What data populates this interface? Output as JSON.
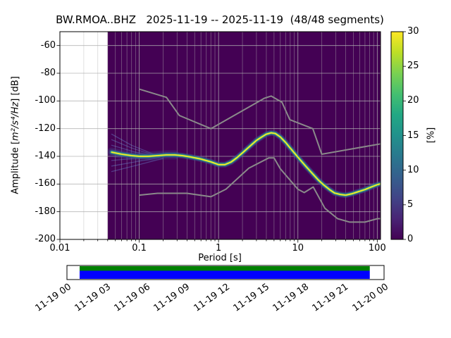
{
  "figure": {
    "title": "BW.RMOA..BHZ   2025-11-19 -- 2025-11-19  (48/48 segments)"
  },
  "axes": {
    "xlabel": "Period [s]",
    "ylabel_prefix": "Amplitude [",
    "ylabel_math": "m²/s⁴/Hz",
    "ylabel_suffix": "] [dB]",
    "x_tick_values": [
      0.01,
      0.1,
      1,
      10,
      100
    ],
    "x_tick_labels": [
      "0.01",
      "0.1",
      "1",
      "10",
      "100"
    ],
    "y_tick_values": [
      -60,
      -80,
      -100,
      -120,
      -140,
      -160,
      -180,
      -200
    ],
    "grid_color": "#b0b0b0"
  },
  "colorbar": {
    "label": "[%]",
    "tick_values": [
      0,
      5,
      10,
      15,
      20,
      25,
      30
    ],
    "stops": [
      "#440154",
      "#482475",
      "#414487",
      "#355f8d",
      "#2a788e",
      "#21918c",
      "#22a884",
      "#44bf70",
      "#7ad151",
      "#bddf26",
      "#fde725"
    ]
  },
  "timeline": {
    "tick_labels": [
      "11-19 00",
      "11-19 03",
      "11-19 06",
      "11-19 09",
      "11-19 12",
      "11-19 15",
      "11-19 18",
      "11-19 21",
      "11-20 00"
    ],
    "top_color": "#008000",
    "bottom_color": "#0000ff",
    "coverage_start_frac": 0.04,
    "coverage_end_frac": 0.955
  },
  "chart_data": {
    "type": "heatmap",
    "title": "BW.RMOA..BHZ   2025-11-19 -- 2025-11-19  (48/48 segments)",
    "xlabel": "Period [s]",
    "ylabel": "Amplitude [m^2/s^4/Hz] [dB]",
    "x_scale": "log",
    "xlim": [
      0.01,
      110
    ],
    "ylim": [
      -200,
      -50
    ],
    "colorbar_label": "[%]",
    "colorbar_range": [
      0,
      30
    ],
    "colormap": "viridis",
    "background_color": "#440154",
    "noise_model_color": "#8a8a8a",
    "spread_color": "rgba(110,150,220,0.38)",
    "data_extent": [
      0.04,
      110
    ],
    "band_styles": [
      {
        "color": "rgba(65,68,135,0.35)",
        "width": 13,
        "max_period": 0.3
      },
      {
        "color": "rgba(59,82,139,0.5)",
        "width": 8
      },
      {
        "color": "rgba(42,120,142,0.9)",
        "width": 5
      },
      {
        "color": "rgba(53,183,121,0.95)",
        "width": 3
      },
      {
        "color": "#fde725",
        "width": 1.8
      }
    ],
    "spread_strands": [
      [
        [
          0.045,
          -124
        ],
        [
          0.08,
          -132
        ],
        [
          0.16,
          -139
        ]
      ],
      [
        [
          0.045,
          -128
        ],
        [
          0.08,
          -134
        ],
        [
          0.16,
          -139.5
        ]
      ],
      [
        [
          0.045,
          -132
        ],
        [
          0.09,
          -137
        ],
        [
          0.16,
          -140
        ]
      ],
      [
        [
          0.045,
          -136
        ],
        [
          0.09,
          -139
        ],
        [
          0.16,
          -140
        ]
      ],
      [
        [
          0.045,
          -143
        ],
        [
          0.09,
          -141.5
        ],
        [
          0.16,
          -140.5
        ]
      ],
      [
        [
          0.045,
          -147
        ],
        [
          0.1,
          -143.5
        ],
        [
          0.18,
          -141
        ]
      ],
      [
        [
          0.045,
          -151
        ],
        [
          0.1,
          -146
        ],
        [
          0.2,
          -141.5
        ]
      ]
    ],
    "series": [
      {
        "name": "psd-mode",
        "points": [
          [
            0.045,
            -137
          ],
          [
            0.06,
            -138.5
          ],
          [
            0.08,
            -139.5
          ],
          [
            0.1,
            -140
          ],
          [
            0.13,
            -140
          ],
          [
            0.17,
            -139.5
          ],
          [
            0.22,
            -139
          ],
          [
            0.28,
            -139
          ],
          [
            0.35,
            -139.5
          ],
          [
            0.45,
            -140.5
          ],
          [
            0.6,
            -142
          ],
          [
            0.8,
            -144
          ],
          [
            1.0,
            -146
          ],
          [
            1.2,
            -146
          ],
          [
            1.45,
            -144
          ],
          [
            1.7,
            -141
          ],
          [
            2.0,
            -137.5
          ],
          [
            2.5,
            -132.5
          ],
          [
            3.0,
            -128.5
          ],
          [
            3.5,
            -126
          ],
          [
            4.0,
            -124
          ],
          [
            4.6,
            -123
          ],
          [
            5.2,
            -123.5
          ],
          [
            6.0,
            -126
          ],
          [
            7.0,
            -130
          ],
          [
            8.0,
            -134
          ],
          [
            9.0,
            -137.5
          ],
          [
            10.5,
            -142
          ],
          [
            12.5,
            -147
          ],
          [
            15.0,
            -152
          ],
          [
            18.0,
            -157
          ],
          [
            21.0,
            -160.5
          ],
          [
            25.0,
            -164
          ],
          [
            29.0,
            -166.5
          ],
          [
            34.0,
            -167.5
          ],
          [
            40.0,
            -168
          ],
          [
            48.0,
            -167
          ],
          [
            58.0,
            -165.5
          ],
          [
            70.0,
            -164
          ],
          [
            85.0,
            -162
          ],
          [
            100.0,
            -160.5
          ],
          [
            108.0,
            -160
          ]
        ]
      },
      {
        "name": "noise-model-high",
        "points": [
          [
            0.1,
            -91.5
          ],
          [
            0.22,
            -97.4
          ],
          [
            0.32,
            -110.5
          ],
          [
            0.8,
            -120.0
          ],
          [
            3.8,
            -98.0
          ],
          [
            4.6,
            -96.5
          ],
          [
            6.3,
            -101.0
          ],
          [
            7.9,
            -113.5
          ],
          [
            15.4,
            -120.0
          ],
          [
            20.0,
            -138.5
          ],
          [
            110.0,
            -131.0
          ]
        ]
      },
      {
        "name": "noise-model-low",
        "points": [
          [
            0.1,
            -168.0
          ],
          [
            0.17,
            -166.7
          ],
          [
            0.4,
            -166.7
          ],
          [
            0.8,
            -169.2
          ],
          [
            1.24,
            -163.7
          ],
          [
            2.4,
            -148.6
          ],
          [
            4.3,
            -141.1
          ],
          [
            5.0,
            -141.1
          ],
          [
            6.0,
            -149.0
          ],
          [
            10.0,
            -163.8
          ],
          [
            12.0,
            -166.2
          ],
          [
            15.6,
            -162.1
          ],
          [
            21.9,
            -177.5
          ],
          [
            31.6,
            -185.0
          ],
          [
            45.0,
            -187.5
          ],
          [
            70.0,
            -187.5
          ],
          [
            101.0,
            -185.0
          ],
          [
            110.0,
            -185.0
          ]
        ]
      }
    ]
  }
}
